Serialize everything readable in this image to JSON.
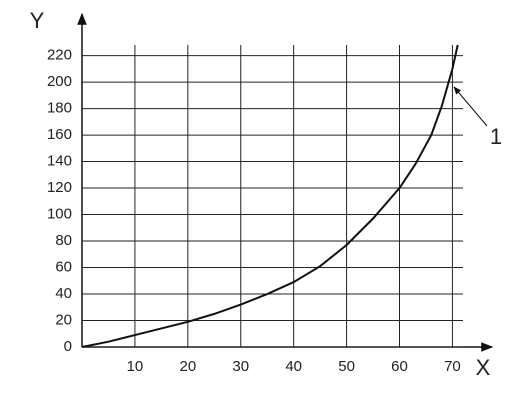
{
  "chart_data": {
    "type": "line",
    "x_label": "X",
    "y_label": "Y",
    "annotation": "1",
    "x": [
      0,
      5,
      10,
      15,
      20,
      25,
      30,
      35,
      40,
      45,
      50,
      55,
      60,
      63,
      66,
      68,
      70,
      71
    ],
    "values": [
      0,
      4,
      9,
      14,
      19,
      25,
      32,
      40,
      49,
      61,
      77,
      97,
      120,
      138,
      160,
      182,
      210,
      228
    ],
    "color": "#111",
    "xlim": [
      0,
      72
    ],
    "ylim": [
      0,
      228
    ],
    "xticks": [
      10,
      20,
      30,
      40,
      50,
      60,
      70
    ],
    "yticks": [
      0,
      20,
      40,
      60,
      80,
      100,
      120,
      140,
      160,
      180,
      200,
      220
    ],
    "grid": true
  }
}
